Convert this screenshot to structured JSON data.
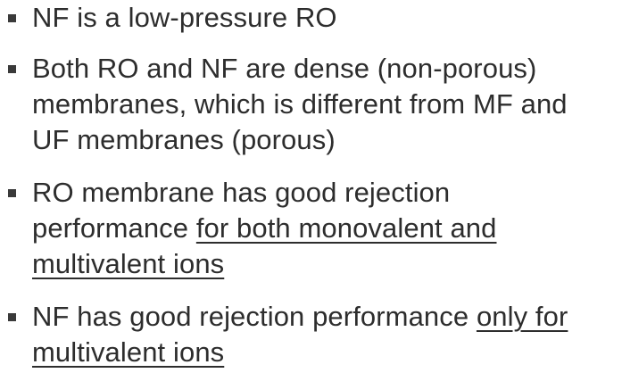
{
  "slide": {
    "bullets": [
      {
        "line1": "NF is a low-pressure RO"
      },
      {
        "line1": "Both RO and NF are dense (non-porous)",
        "line2": "membranes, which is different from MF and",
        "line3": "UF membranes (porous)"
      },
      {
        "line1": "RO membrane has good rejection",
        "line2_plain": "performance ",
        "line2_underlined": "for both monovalent and",
        "line3_underlined": "multivalent ions"
      },
      {
        "line1_plain": "NF has good rejection performance ",
        "line1_underlined": "only for",
        "line2_underlined": "multivalent ions"
      }
    ],
    "text_color": "#2d2d2d",
    "marker_color": "#3a3a3a",
    "marker_shape": "square"
  }
}
